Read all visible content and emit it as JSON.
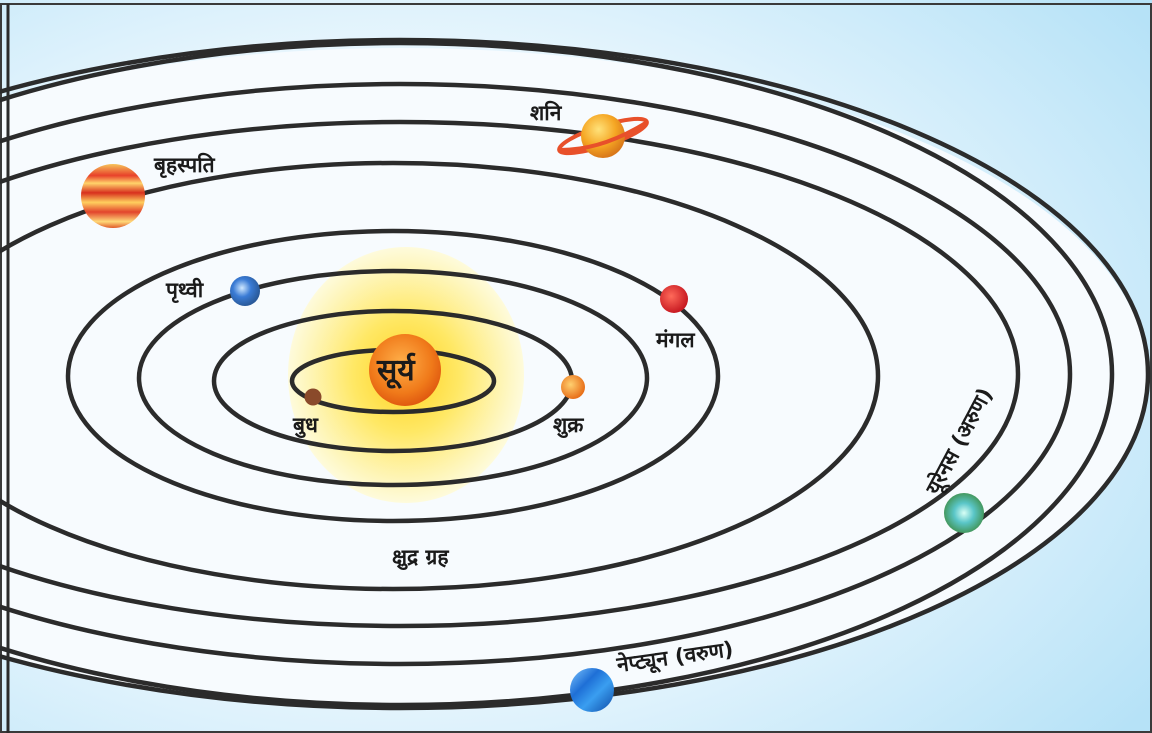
{
  "labels": {
    "sun": "सूर्य",
    "mercury": "बुध",
    "venus": "शुक्र",
    "earth": "पृथ्वी",
    "mars": "मंगल",
    "asteroids": "क्षुद्र ग्रह",
    "jupiter": "बृहस्पति",
    "saturn": "शनि",
    "uranus": "यूरेनस (अरुण)",
    "neptune": "नेप्ट्यून (वरुण)"
  },
  "colors": {
    "sky": "#bfe6f8",
    "sun": "#f07a1a",
    "glow": "#fff7b0",
    "mercury": "#8a4a2a",
    "venus": "#f39a2a",
    "earth": "#3a7bd5",
    "mars": "#e0262c",
    "jupiter": "#e8402a",
    "saturn": "#f5a623",
    "uranus": "#4caf7a",
    "neptune": "#1e6fd6"
  }
}
